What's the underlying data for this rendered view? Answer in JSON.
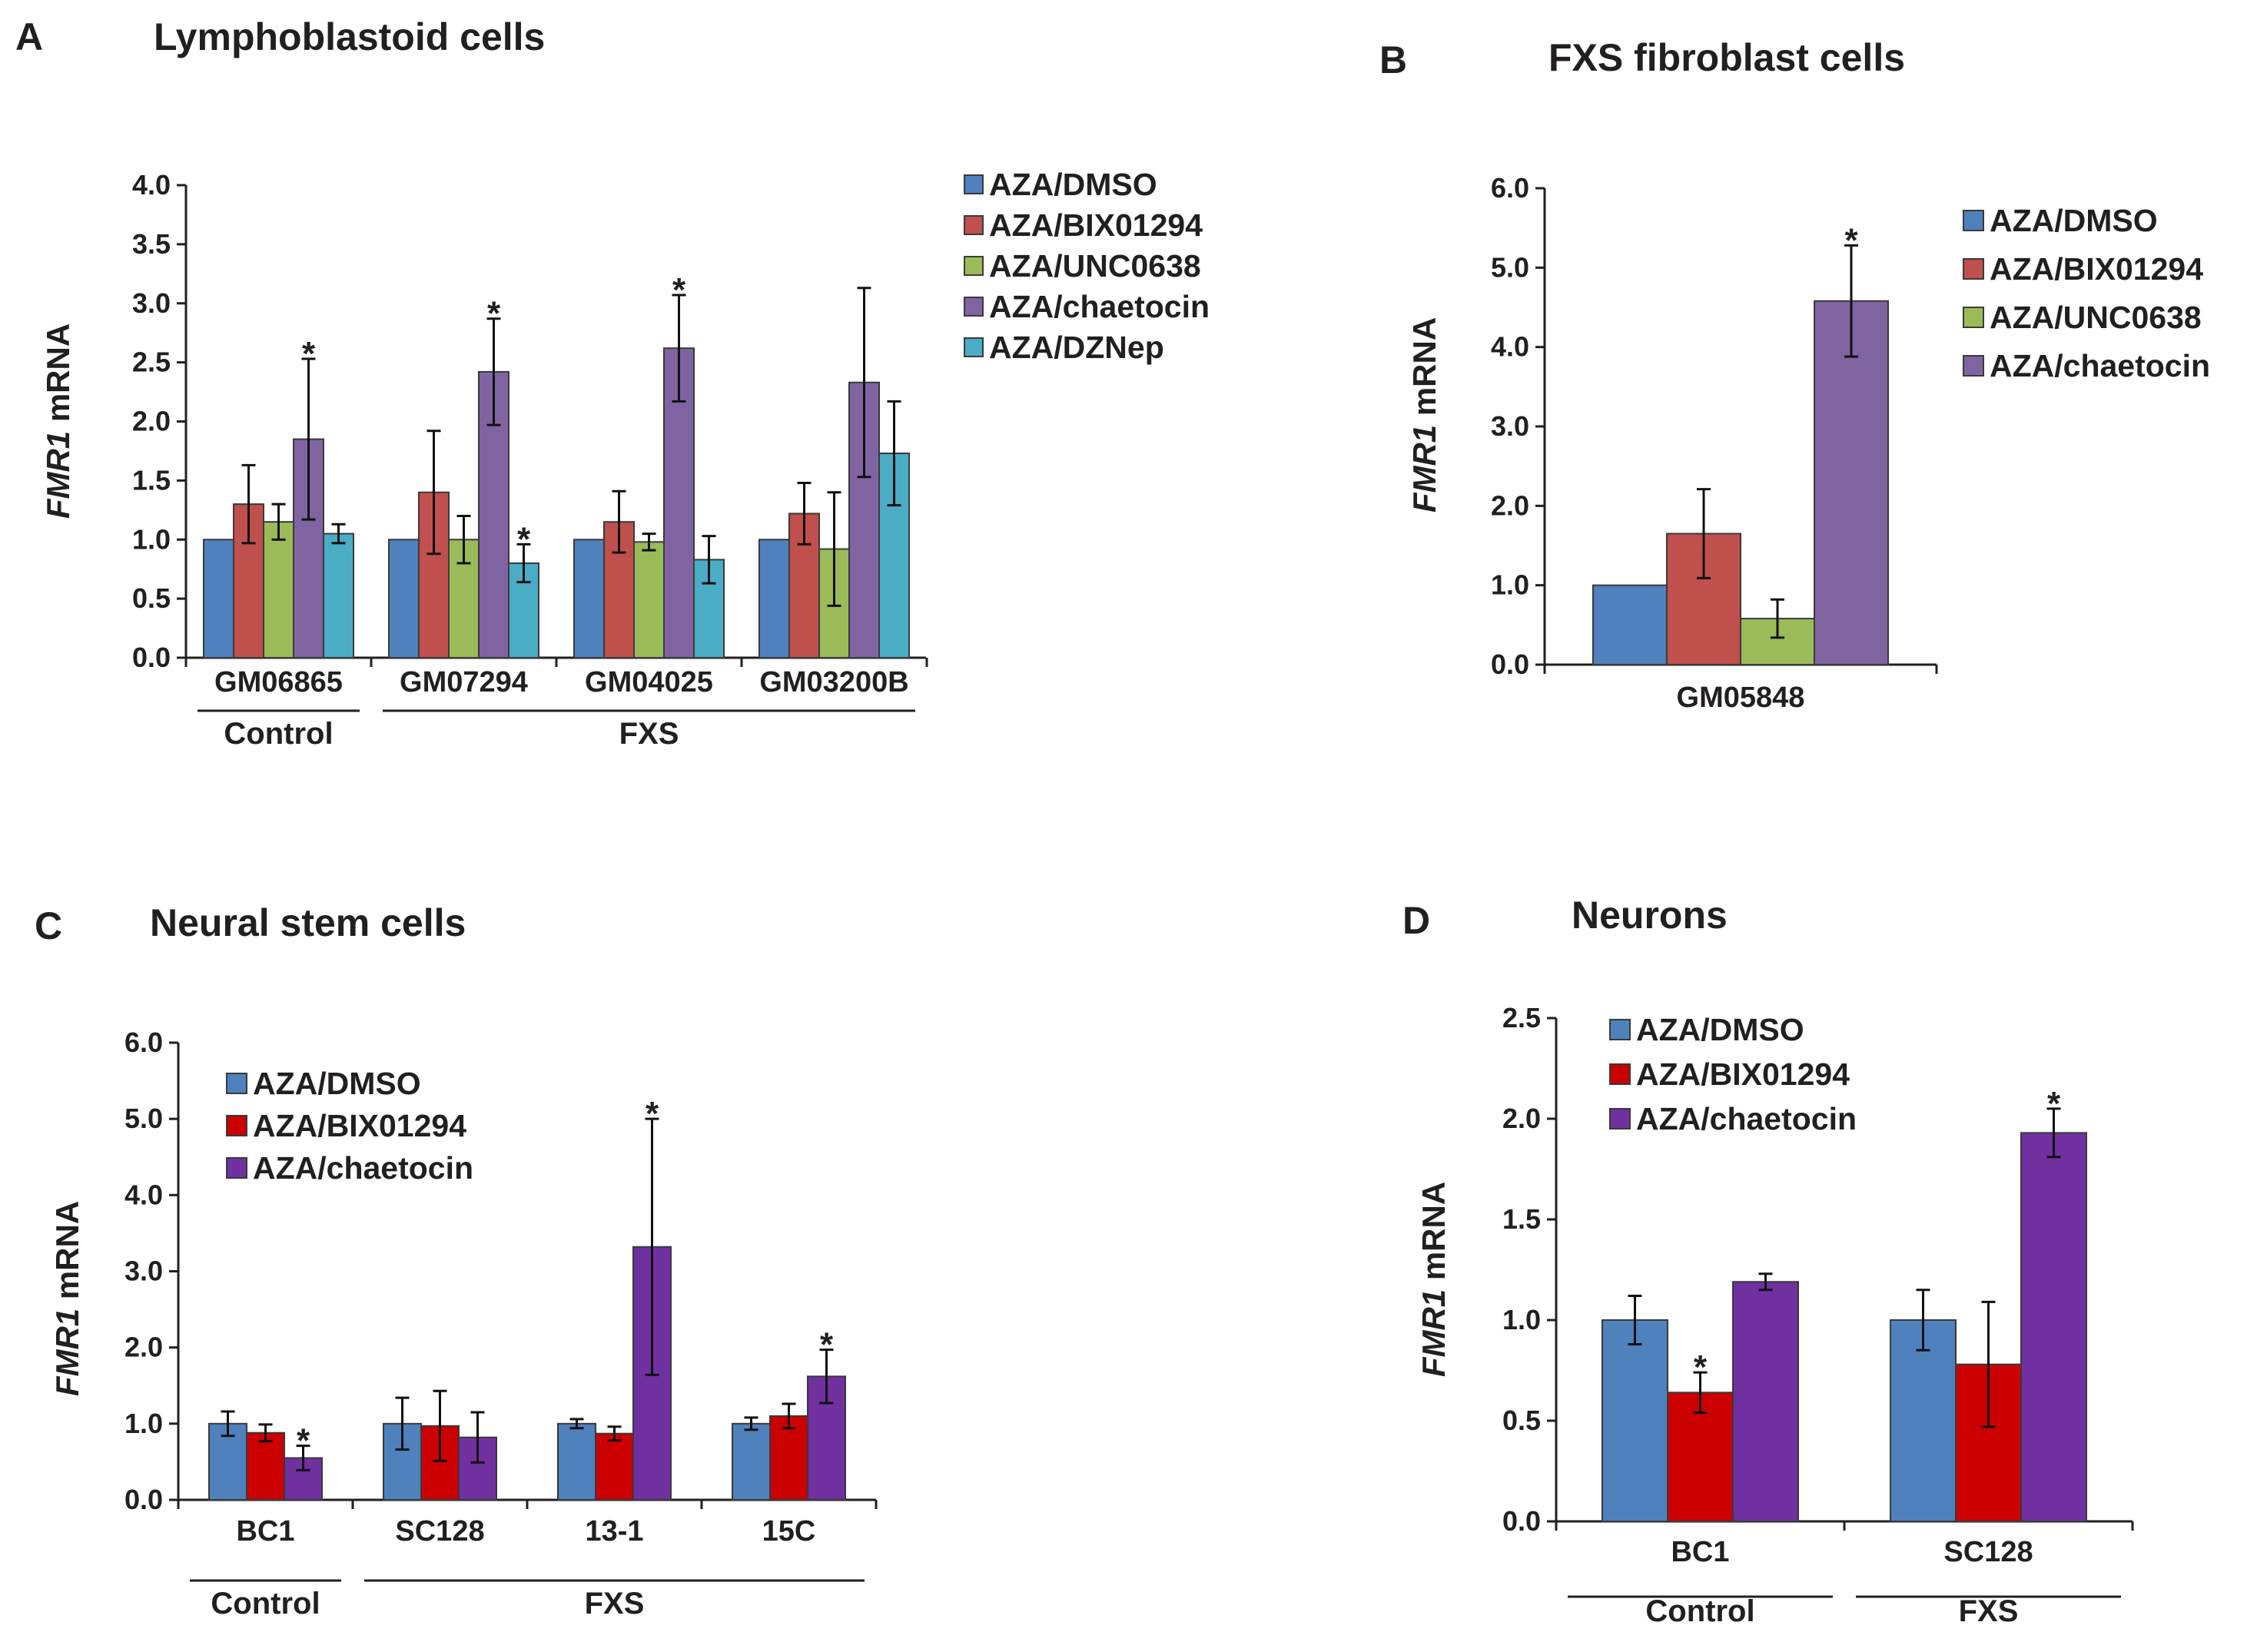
{
  "chart_data": [
    {
      "panel": "A",
      "type": "bar",
      "title": "Lymphoblastoid cells",
      "ylabel_italic": "FMR1",
      "ylabel_rest": " mRNA",
      "ylim": [
        0,
        4.0
      ],
      "yticks": [
        "0.0",
        "0.5",
        "1.0",
        "1.5",
        "2.0",
        "2.5",
        "3.0",
        "3.5",
        "4.0"
      ],
      "categories": [
        "GM06865",
        "GM07294",
        "GM04025",
        "GM03200B"
      ],
      "series": [
        {
          "name": "AZA/DMSO",
          "color": "#4f81bd",
          "values": [
            1.0,
            1.0,
            1.0,
            1.0
          ],
          "errors": [
            0,
            0,
            0,
            0
          ],
          "stars": [
            false,
            false,
            false,
            false
          ]
        },
        {
          "name": "AZA/BIX01294",
          "color": "#c0504d",
          "values": [
            1.3,
            1.4,
            1.15,
            1.22
          ],
          "errors": [
            0.33,
            0.52,
            0.26,
            0.26
          ],
          "stars": [
            false,
            false,
            false,
            false
          ]
        },
        {
          "name": "AZA/UNC0638",
          "color": "#9bbb59",
          "values": [
            1.15,
            1.0,
            0.98,
            0.92
          ],
          "errors": [
            0.15,
            0.2,
            0.07,
            0.48
          ],
          "stars": [
            false,
            false,
            false,
            false
          ]
        },
        {
          "name": "AZA/chaetocin",
          "color": "#8064a2",
          "values": [
            1.85,
            2.42,
            2.62,
            2.33
          ],
          "errors": [
            0.68,
            0.45,
            0.45,
            0.8
          ],
          "stars": [
            true,
            true,
            true,
            false
          ]
        },
        {
          "name": "AZA/DZNep",
          "color": "#4bacc6",
          "values": [
            1.05,
            0.8,
            0.83,
            1.73
          ],
          "errors": [
            0.08,
            0.16,
            0.2,
            0.44
          ],
          "stars": [
            false,
            true,
            false,
            false
          ]
        }
      ],
      "groups": [
        {
          "label": "Control",
          "from": 0,
          "to": 0
        },
        {
          "label": "FXS",
          "from": 1,
          "to": 3
        }
      ]
    },
    {
      "panel": "B",
      "type": "bar",
      "title": "FXS fibroblast cells",
      "ylabel_italic": "FMR1",
      "ylabel_rest": " mRNA",
      "ylim": [
        0,
        6.0
      ],
      "yticks": [
        "0.0",
        "1.0",
        "2.0",
        "3.0",
        "4.0",
        "5.0",
        "6.0"
      ],
      "categories": [
        "GM05848"
      ],
      "series": [
        {
          "name": "AZA/DMSO",
          "color": "#4f81bd",
          "values": [
            1.0
          ],
          "errors": [
            0
          ],
          "stars": [
            false
          ]
        },
        {
          "name": "AZA/BIX01294",
          "color": "#c0504d",
          "values": [
            1.65
          ],
          "errors": [
            0.56
          ],
          "stars": [
            false
          ]
        },
        {
          "name": "AZA/UNC0638",
          "color": "#9bbb59",
          "values": [
            0.58
          ],
          "errors": [
            0.24
          ],
          "stars": [
            false
          ]
        },
        {
          "name": "AZA/chaetocin",
          "color": "#8064a2",
          "values": [
            4.58
          ],
          "errors": [
            0.7
          ],
          "stars": [
            true
          ]
        }
      ],
      "groups": []
    },
    {
      "panel": "C",
      "type": "bar",
      "title": "Neural stem cells",
      "ylabel_italic": "FMR1",
      "ylabel_rest": " mRNA",
      "ylim": [
        0,
        6.0
      ],
      "yticks": [
        "0.0",
        "1.0",
        "2.0",
        "3.0",
        "4.0",
        "5.0",
        "6.0"
      ],
      "categories": [
        "BC1",
        "SC128",
        "13-1",
        "15C"
      ],
      "series": [
        {
          "name": "AZA/DMSO",
          "color": "#4f81bd",
          "values": [
            1.0,
            1.0,
            1.0,
            1.0
          ],
          "errors": [
            0.16,
            0.34,
            0.06,
            0.08
          ],
          "stars": [
            false,
            false,
            false,
            false
          ]
        },
        {
          "name": "AZA/BIX01294",
          "color": "#cc0000",
          "values": [
            0.88,
            0.97,
            0.87,
            1.1
          ],
          "errors": [
            0.11,
            0.46,
            0.09,
            0.16
          ],
          "stars": [
            false,
            false,
            false,
            false
          ]
        },
        {
          "name": "AZA/chaetocin",
          "color": "#7030a0",
          "values": [
            0.55,
            0.82,
            3.32,
            1.62
          ],
          "errors": [
            0.16,
            0.33,
            1.68,
            0.35
          ],
          "stars": [
            true,
            false,
            true,
            true
          ]
        }
      ],
      "groups": [
        {
          "label": "Control",
          "from": 0,
          "to": 0
        },
        {
          "label": "FXS",
          "from": 1,
          "to": 3
        }
      ]
    },
    {
      "panel": "D",
      "type": "bar",
      "title": "Neurons",
      "ylabel_italic": "FMR1",
      "ylabel_rest": " mRNA",
      "ylim": [
        0,
        2.5
      ],
      "yticks": [
        "0.0",
        "0.5",
        "1.0",
        "1.5",
        "2.0",
        "2.5"
      ],
      "categories": [
        "BC1",
        "SC128"
      ],
      "series": [
        {
          "name": "AZA/DMSO",
          "color": "#4f81bd",
          "values": [
            1.0,
            1.0
          ],
          "errors": [
            0.12,
            0.15
          ],
          "stars": [
            false,
            false
          ]
        },
        {
          "name": "AZA/BIX01294",
          "color": "#cc0000",
          "values": [
            0.64,
            0.78
          ],
          "errors": [
            0.1,
            0.31
          ],
          "stars": [
            true,
            false
          ]
        },
        {
          "name": "AZA/chaetocin",
          "color": "#7030a0",
          "values": [
            1.19,
            1.93
          ],
          "errors": [
            0.04,
            0.12
          ],
          "stars": [
            false,
            true
          ]
        }
      ],
      "groups": [
        {
          "label": "Control",
          "from": 0,
          "to": 0
        },
        {
          "label": "FXS",
          "from": 1,
          "to": 1
        }
      ]
    }
  ],
  "star_symbol": "*"
}
